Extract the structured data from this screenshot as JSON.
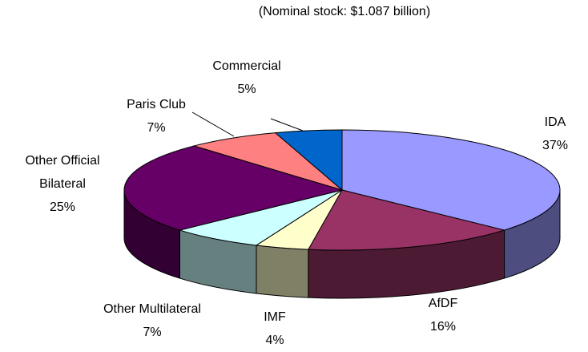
{
  "chart_data": {
    "type": "pie",
    "subtitle": "(Nominal stock: $1.087 billion)",
    "categories": [
      "IDA",
      "AfDF",
      "IMF",
      "Other Multilateral",
      "Other Official Bilateral",
      "Paris Club",
      "Commercial"
    ],
    "values": [
      37,
      16,
      4,
      7,
      25,
      7,
      5
    ],
    "value_labels": [
      "37%",
      "16%",
      "4%",
      "7%",
      "25%",
      "7%",
      "5%"
    ],
    "colors": [
      "#9999ff",
      "#993366",
      "#ffffcc",
      "#ccffff",
      "#660066",
      "#ff8080",
      "#0066cc"
    ]
  }
}
